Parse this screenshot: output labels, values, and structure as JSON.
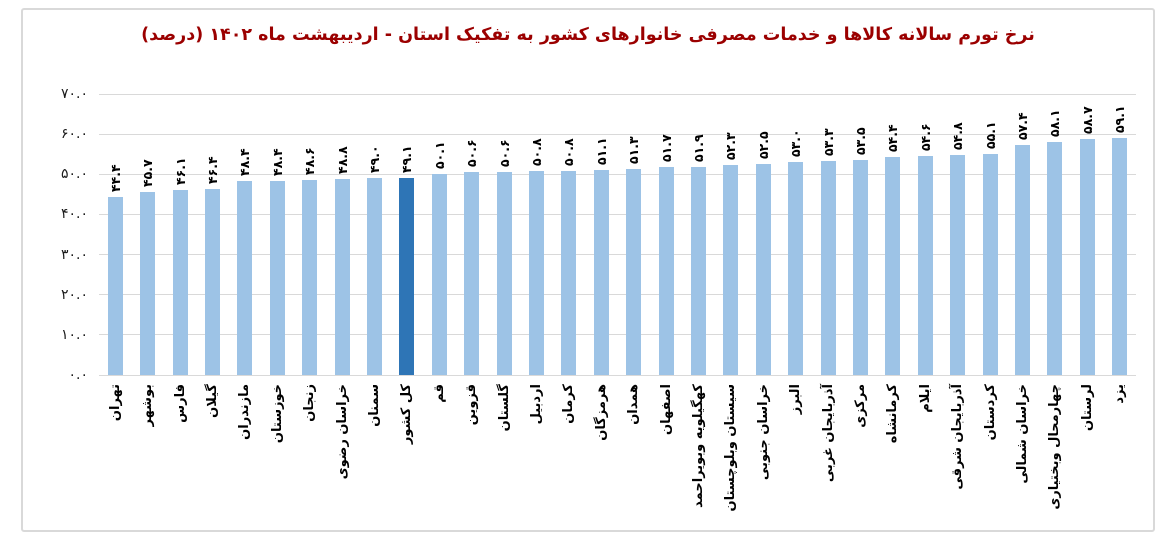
{
  "window": {
    "background": "#FFFFFF",
    "frame_border_color": "#D9D9D9"
  },
  "chart_data": {
    "type": "bar",
    "title": "نرخ تورم سالانه کالاها و خدمات مصرفی خانوارهای کشور به تفکیک استان - اردیبهشت ماه ۱۴۰۲ (درصد)",
    "title_color": "#9B0000",
    "xlabel": "",
    "ylabel": "",
    "ylim": [
      0,
      70
    ],
    "grid": true,
    "legend": "none",
    "bar_color": "#9DC3E6",
    "highlight_color": "#2E75B6",
    "highlight_index": 9,
    "highlight_category": "کل کشور",
    "gridline_color": "#D9D9D9",
    "y_ticks": [
      {
        "value": 70,
        "label": "۷۰.۰"
      },
      {
        "value": 60,
        "label": "۶۰.۰"
      },
      {
        "value": 50,
        "label": "۵۰.۰"
      },
      {
        "value": 40,
        "label": "۴۰.۰"
      },
      {
        "value": 30,
        "label": "۳۰.۰"
      },
      {
        "value": 20,
        "label": "۲۰.۰"
      },
      {
        "value": 10,
        "label": "۱۰.۰"
      },
      {
        "value": 0,
        "label": "۰.۰"
      }
    ],
    "categories": [
      "تهران",
      "بوشهر",
      "فارس",
      "گیلان",
      "مازندران",
      "خوزستان",
      "زنجان",
      "خراسان رضوی",
      "سمنان",
      "کل کشور",
      "قم",
      "قزوین",
      "گلستان",
      "اردبیل",
      "کرمان",
      "هرمزگان",
      "همدان",
      "اصفهان",
      "کهگیلویه وبویراحمد",
      "سیستان وبلوچستان",
      "خراسان جنوبی",
      "البرز",
      "آذربایجان غربی",
      "مرکزی",
      "کرمانشاه",
      "ایلام",
      "آذربایجان شرقی",
      "کردستان",
      "خراسان شمالی",
      "چهارمحال وبختیاری",
      "لرستان",
      "یزد"
    ],
    "values": [
      44.4,
      45.7,
      46.1,
      46.4,
      48.4,
      48.4,
      48.6,
      48.8,
      49.0,
      49.1,
      50.1,
      50.6,
      50.6,
      50.8,
      50.8,
      51.1,
      51.3,
      51.7,
      51.9,
      52.3,
      52.5,
      53.0,
      53.3,
      53.5,
      54.4,
      54.6,
      54.8,
      55.1,
      57.4,
      58.1,
      58.7,
      59.1
    ],
    "value_labels": [
      "۴۴.۴",
      "۴۵.۷",
      "۴۶.۱",
      "۴۶.۴",
      "۴۸.۴",
      "۴۸.۴",
      "۴۸.۶",
      "۴۸.۸",
      "۴۹.۰",
      "۴۹.۱",
      "۵۰.۱",
      "۵۰.۶",
      "۵۰.۶",
      "۵۰.۸",
      "۵۰.۸",
      "۵۱.۱",
      "۵۱.۳",
      "۵۱.۷",
      "۵۱.۹",
      "۵۲.۳",
      "۵۲.۵",
      "۵۳.۰",
      "۵۳.۳",
      "۵۳.۵",
      "۵۴.۴",
      "۵۴.۶",
      "۵۴.۸",
      "۵۵.۱",
      "۵۷.۴",
      "۵۸.۱",
      "۵۸.۷",
      "۵۹.۱"
    ]
  }
}
